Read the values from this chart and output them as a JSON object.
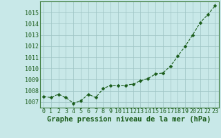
{
  "x": [
    0,
    1,
    2,
    3,
    4,
    5,
    6,
    7,
    8,
    9,
    10,
    11,
    12,
    13,
    14,
    15,
    16,
    17,
    18,
    19,
    20,
    21,
    22,
    23
  ],
  "y": [
    1007.5,
    1007.4,
    1007.7,
    1007.4,
    1006.9,
    1007.1,
    1007.7,
    1007.4,
    1008.2,
    1008.5,
    1008.5,
    1008.5,
    1008.6,
    1008.9,
    1009.1,
    1009.5,
    1009.6,
    1010.2,
    1011.1,
    1012.0,
    1013.0,
    1014.1,
    1014.8,
    1015.6
  ],
  "line_color": "#1a5c1a",
  "marker": "D",
  "marker_size": 2.5,
  "bg_color": "#c8e8e8",
  "grid_color": "#9ec4c4",
  "title": "Graphe pression niveau de la mer (hPa)",
  "xlabel_ticks": [
    "0",
    "1",
    "2",
    "3",
    "4",
    "5",
    "6",
    "7",
    "8",
    "9",
    "10",
    "11",
    "12",
    "13",
    "14",
    "15",
    "16",
    "17",
    "18",
    "19",
    "20",
    "21",
    "22",
    "23"
  ],
  "ylim": [
    1006.5,
    1016.0
  ],
  "yticks": [
    1007,
    1008,
    1009,
    1010,
    1011,
    1012,
    1013,
    1014,
    1015
  ],
  "title_fontsize": 7.5,
  "tick_fontsize": 6.0,
  "title_color": "#1a5c1a",
  "tick_color": "#1a5c1a"
}
